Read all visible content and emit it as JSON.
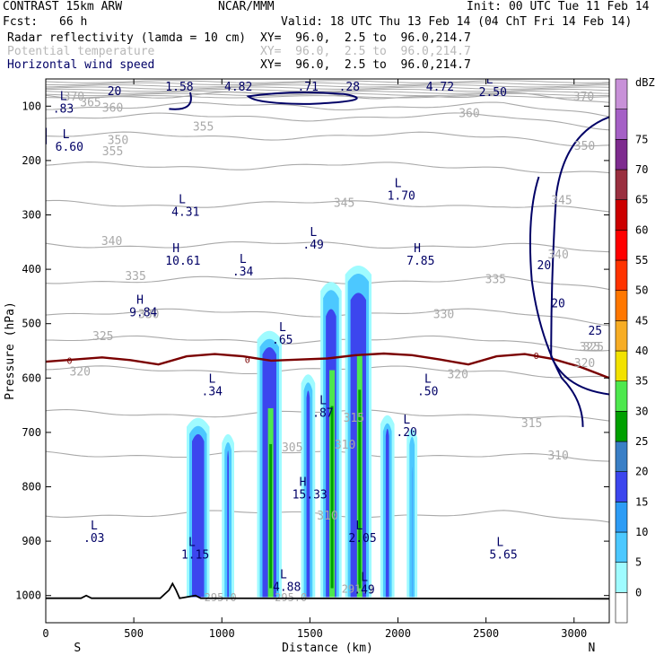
{
  "header": {
    "model": "CONTRAST 15km ARW",
    "center": "NCAR/MMM",
    "init": "Init: 00 UTC Tue 11 Feb 14",
    "fcst_label": "Fcst:",
    "fcst_value": "66 h",
    "valid": "Valid: 18 UTC Thu 13 Feb 14 (04 ChT Fri 14 Feb 14)",
    "fields": [
      {
        "name": "Radar reflectivity (lamda = 10 cm)",
        "xy": "XY=  96.0,  2.5 to  96.0,214.7",
        "style": "normal"
      },
      {
        "name": "Potential temperature",
        "xy": "XY=  96.0,  2.5 to  96.0,214.7",
        "style": "dim"
      },
      {
        "name": "Horizontal wind speed",
        "xy": "XY=  96.0,  2.5 to  96.0,214.7",
        "style": "blue"
      }
    ]
  },
  "colors": {
    "theta": "#a9a9a9",
    "wind": "#000066",
    "freezing": "#7a0000",
    "terrain": "#000000",
    "text": "#000000"
  },
  "chart_data": {
    "type": "cross-section",
    "title": "Radar reflectivity / Potential temperature / Horizontal wind speed",
    "xlabel": "Distance (km)",
    "ylabel": "Pressure (hPa)",
    "xlim": [
      0,
      3200
    ],
    "ylim": [
      1050,
      50
    ],
    "x_ticks": [
      "0",
      "500",
      "1000",
      "1500",
      "2000",
      "2500",
      "3000"
    ],
    "y_ticks": [
      "100",
      "200",
      "300",
      "400",
      "500",
      "600",
      "700",
      "800",
      "900",
      "1000"
    ],
    "x_end_labels": {
      "left": "S",
      "right": "N"
    },
    "colorbar": {
      "unit": "dBZ",
      "levels": [
        0,
        5,
        10,
        15,
        20,
        25,
        30,
        35,
        40,
        45,
        50,
        55,
        60,
        65,
        70,
        75
      ],
      "colors": [
        "#ffffff",
        "#9ffbff",
        "#4cc8ff",
        "#2d9cf5",
        "#3c46ee",
        "#3a7fc6",
        "#00a000",
        "#4ee84e",
        "#f2e200",
        "#f7ad25",
        "#ff7700",
        "#ff3300",
        "#ff0000",
        "#cc0000",
        "#9a2f3f",
        "#7e2b8f",
        "#a560c6",
        "#c891d8"
      ]
    },
    "theta_contours": [
      {
        "label": "370",
        "y": 110,
        "p": 80
      },
      {
        "label": "365",
        "y": 124,
        "p": 100
      },
      {
        "label": "360",
        "y": 138,
        "p": 120
      },
      {
        "label": "355",
        "y": 158,
        "p": 155
      },
      {
        "label": "350",
        "y": 191,
        "p": 210
      },
      {
        "label": "345",
        "y": 231,
        "p": 280
      },
      {
        "label": "340",
        "y": 274,
        "p": 355
      },
      {
        "label": "335",
        "y": 315,
        "p": 420
      },
      {
        "label": "330",
        "y": 352,
        "p": 480
      },
      {
        "label": "325",
        "y": 384,
        "p": 530
      },
      {
        "label": "320",
        "y": 418,
        "p": 585
      },
      {
        "label": "315",
        "y": 468,
        "p": 665
      },
      {
        "label": "310",
        "y": 513,
        "p": 740
      },
      {
        "label": "305",
        "y": 578,
        "p": 850
      }
    ],
    "theta_labels": [
      {
        "text": "370",
        "x": 100,
        "p": 90
      },
      {
        "text": "365",
        "x": 195,
        "p": 100
      },
      {
        "text": "360",
        "x": 320,
        "p": 110
      },
      {
        "text": "355",
        "x": 320,
        "p": 190
      },
      {
        "text": "350",
        "x": 350,
        "p": 170
      },
      {
        "text": "345",
        "x": 1635,
        "p": 285
      },
      {
        "text": "340",
        "x": 315,
        "p": 355
      },
      {
        "text": "335",
        "x": 450,
        "p": 420
      },
      {
        "text": "330",
        "x": 525,
        "p": 490
      },
      {
        "text": "325",
        "x": 265,
        "p": 530
      },
      {
        "text": "320",
        "x": 135,
        "p": 595
      },
      {
        "text": "315",
        "x": 1690,
        "p": 680
      },
      {
        "text": "310",
        "x": 1640,
        "p": 730
      },
      {
        "text": "310",
        "x": 1540,
        "p": 860
      },
      {
        "text": "355",
        "x": 835,
        "p": 145
      },
      {
        "text": "350",
        "x": 3000,
        "p": 180
      },
      {
        "text": "360",
        "x": 2345,
        "p": 120
      },
      {
        "text": "370",
        "x": 2995,
        "p": 90
      },
      {
        "text": "345",
        "x": 2870,
        "p": 280
      },
      {
        "text": "340",
        "x": 2850,
        "p": 380
      },
      {
        "text": "335",
        "x": 2495,
        "p": 425
      },
      {
        "text": "330",
        "x": 2200,
        "p": 490
      },
      {
        "text": "325",
        "x": 3050,
        "p": 550
      },
      {
        "text": "320",
        "x": 3000,
        "p": 580
      },
      {
        "text": "320",
        "x": 2280,
        "p": 600
      },
      {
        "text": "315",
        "x": 2700,
        "p": 690
      },
      {
        "text": "310",
        "x": 2850,
        "p": 750
      },
      {
        "text": "305",
        "x": 1340,
        "p": 735
      },
      {
        "text": "325",
        "x": 3030,
        "p": 550
      }
    ],
    "theta_surface_labels": [
      {
        "text": "295.0",
        "x": 900,
        "p": 1010
      },
      {
        "text": "295.0",
        "x": 1300,
        "p": 1010
      },
      {
        "text": "291.1",
        "x": 1680,
        "p": 995
      }
    ],
    "freezing_level": {
      "label": "0",
      "p_values": [
        570,
        566,
        562,
        567,
        575,
        560,
        556,
        560,
        568,
        566,
        564,
        558,
        555,
        558,
        566,
        575,
        560,
        556,
        565,
        580,
        600
      ]
    },
    "wind_labels": [
      "20",
      "20",
      "20",
      "25"
    ],
    "extrema": [
      {
        "type": "L",
        "value": "1.58",
        "x": 720,
        "p": 65
      },
      {
        "type": "L",
        "value": "4.82",
        "x": 1055,
        "p": 65
      },
      {
        "type": "L",
        "value": ".71",
        "x": 1470,
        "p": 65
      },
      {
        "type": "L",
        "value": ".28",
        "x": 1705,
        "p": 65
      },
      {
        "type": "L",
        "value": "4.72",
        "x": 2200,
        "p": 65
      },
      {
        "type": "L",
        "value": "2.50",
        "x": 2500,
        "p": 75
      },
      {
        "type": "L",
        "value": ".83",
        "x": 80,
        "p": 105
      },
      {
        "type": "L",
        "value": "6.60",
        "x": 95,
        "p": 175
      },
      {
        "type": "L",
        "value": "4.31",
        "x": 755,
        "p": 295
      },
      {
        "type": "L",
        "value": "1.70",
        "x": 1980,
        "p": 265
      },
      {
        "type": "L",
        "value": ".49",
        "x": 1500,
        "p": 355
      },
      {
        "type": "H",
        "value": "10.61",
        "x": 720,
        "p": 385
      },
      {
        "type": "L",
        "value": ".34",
        "x": 1100,
        "p": 405
      },
      {
        "type": "H",
        "value": "7.85",
        "x": 2090,
        "p": 385
      },
      {
        "type": "H",
        "value": "9.84",
        "x": 515,
        "p": 480
      },
      {
        "type": "L",
        "value": ".65",
        "x": 1325,
        "p": 530
      },
      {
        "type": "L",
        "value": ".34",
        "x": 925,
        "p": 625
      },
      {
        "type": "L",
        "value": ".50",
        "x": 2150,
        "p": 625
      },
      {
        "type": "L",
        "value": ".87",
        "x": 1555,
        "p": 665
      },
      {
        "type": "L",
        "value": ".20",
        "x": 2030,
        "p": 700
      },
      {
        "type": "H",
        "value": "15.33",
        "x": 1440,
        "p": 815
      },
      {
        "type": "L",
        "value": ".03",
        "x": 255,
        "p": 895
      },
      {
        "type": "L",
        "value": "1.15",
        "x": 810,
        "p": 925
      },
      {
        "type": "L",
        "value": "2.05",
        "x": 1760,
        "p": 895
      },
      {
        "type": "L",
        "value": "5.65",
        "x": 2560,
        "p": 925
      },
      {
        "type": "L",
        "value": "4.88",
        "x": 1330,
        "p": 985
      },
      {
        "type": "L",
        "value": ".49",
        "x": 1790,
        "p": 990
      }
    ],
    "reflectivity_cells": [
      {
        "x0": 800,
        "x1": 930,
        "top": 670,
        "core_top": 700,
        "max_dbz": 20
      },
      {
        "x0": 1000,
        "x1": 1070,
        "top": 700,
        "core_top": 730,
        "max_dbz": 20
      },
      {
        "x0": 1200,
        "x1": 1340,
        "top": 510,
        "core_top": 540,
        "max_dbz": 30
      },
      {
        "x0": 1450,
        "x1": 1530,
        "top": 590,
        "core_top": 620,
        "max_dbz": 20
      },
      {
        "x0": 1560,
        "x1": 1680,
        "top": 420,
        "core_top": 470,
        "max_dbz": 30
      },
      {
        "x0": 1700,
        "x1": 1850,
        "top": 390,
        "core_top": 440,
        "max_dbz": 30
      },
      {
        "x0": 1900,
        "x1": 1980,
        "top": 665,
        "core_top": 690,
        "max_dbz": 20
      },
      {
        "x0": 2050,
        "x1": 2110,
        "top": 690,
        "core_top": 760,
        "max_dbz": 15
      }
    ],
    "terrain": [
      {
        "x": 0,
        "p": 1005
      },
      {
        "x": 200,
        "p": 1005
      },
      {
        "x": 230,
        "p": 1000
      },
      {
        "x": 260,
        "p": 1005
      },
      {
        "x": 650,
        "p": 1005
      },
      {
        "x": 700,
        "p": 990
      },
      {
        "x": 720,
        "p": 978
      },
      {
        "x": 740,
        "p": 990
      },
      {
        "x": 760,
        "p": 1005
      },
      {
        "x": 850,
        "p": 1000
      },
      {
        "x": 880,
        "p": 1005
      },
      {
        "x": 3200,
        "p": 1006
      }
    ]
  }
}
